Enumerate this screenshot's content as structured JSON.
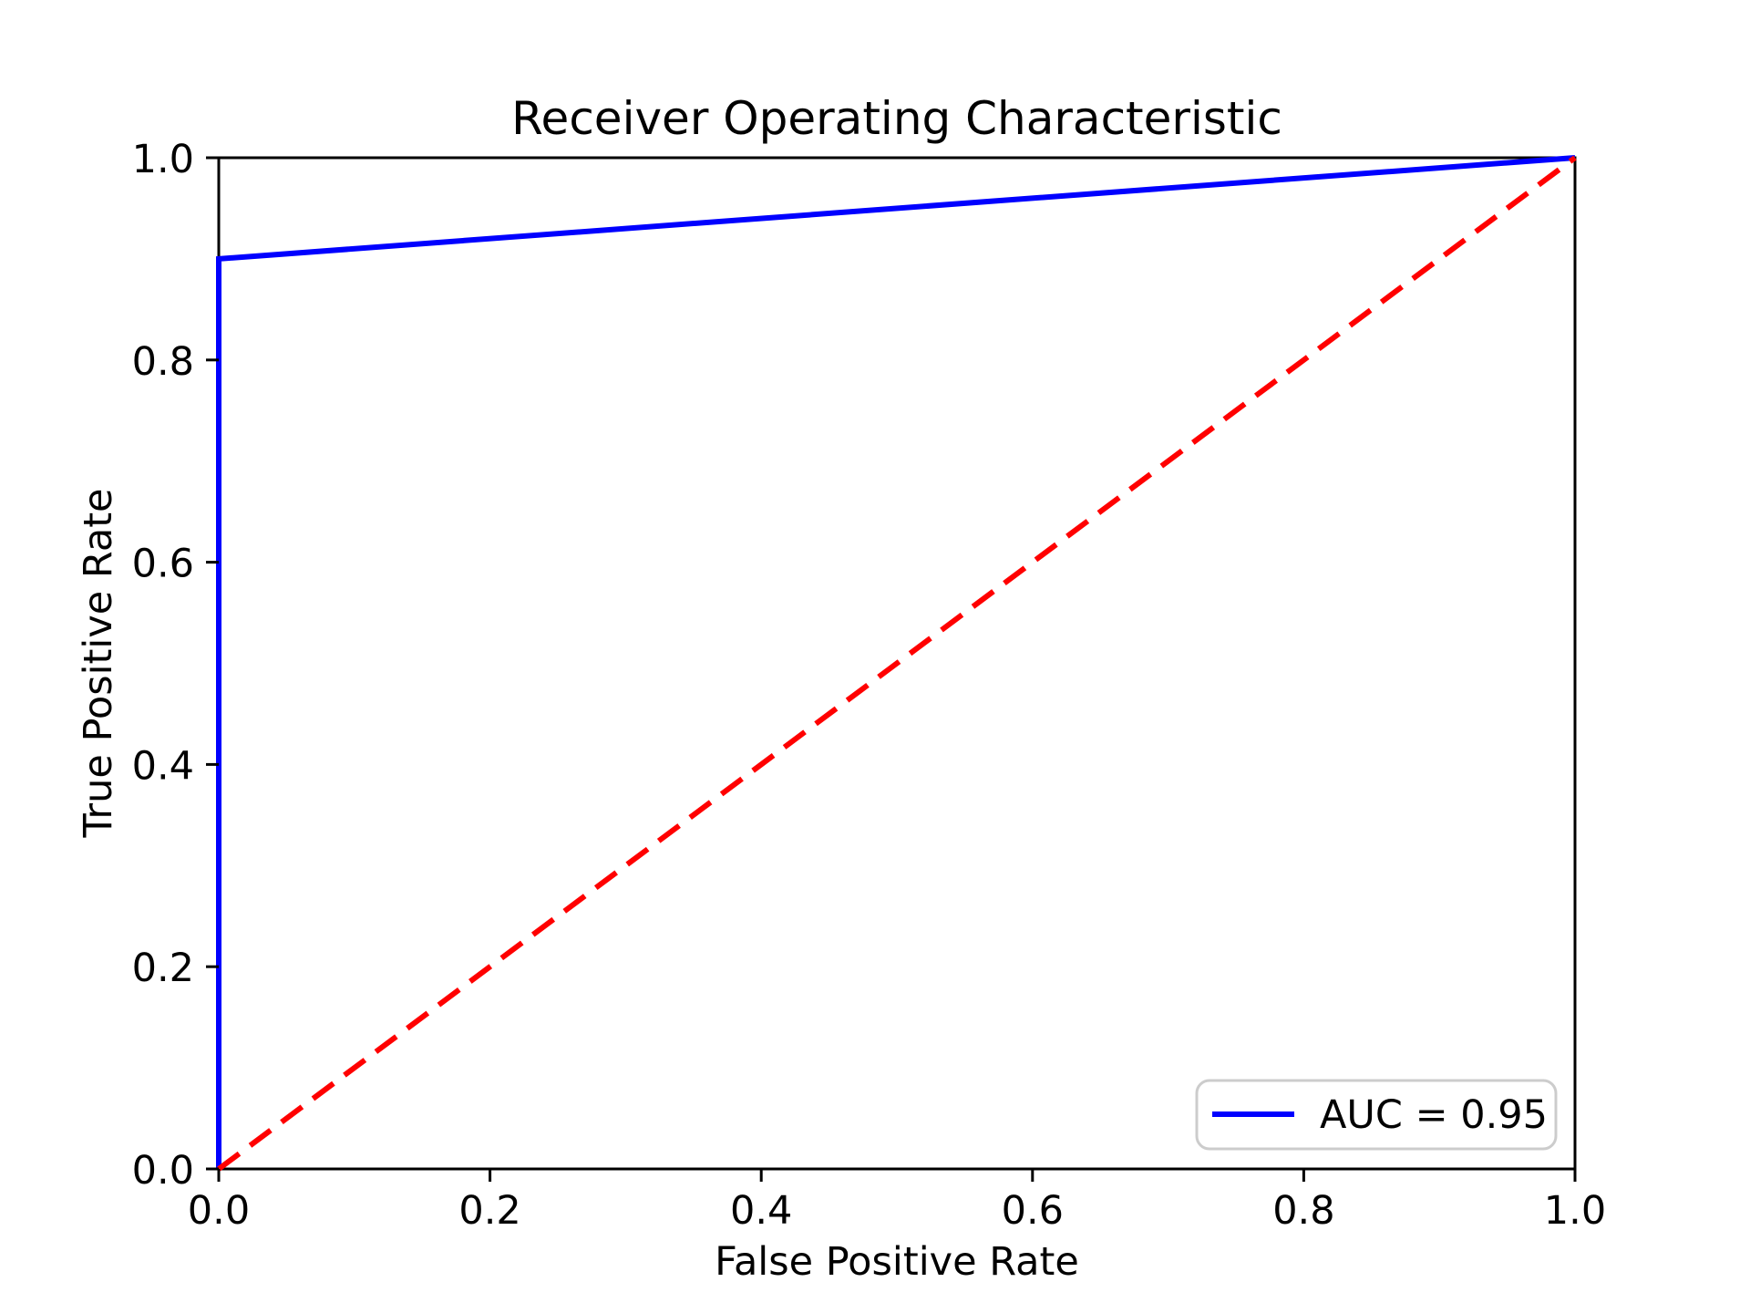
{
  "chart_data": {
    "type": "line",
    "title": "Receiver Operating Characteristic",
    "xlabel": "False Positive Rate",
    "ylabel": "True Positive Rate",
    "xlim": [
      0.0,
      1.0
    ],
    "ylim": [
      0.0,
      1.0
    ],
    "xticks": [
      "0.0",
      "0.2",
      "0.4",
      "0.6",
      "0.8",
      "1.0"
    ],
    "yticks": [
      "0.0",
      "0.2",
      "0.4",
      "0.6",
      "0.8",
      "1.0"
    ],
    "grid": false,
    "legend": {
      "position": "lower right",
      "entries": [
        {
          "label": "AUC = 0.95",
          "color": "#0000ff",
          "style": "solid"
        }
      ]
    },
    "series": [
      {
        "name": "roc-curve",
        "color": "#0000ff",
        "style": "solid",
        "linewidth": 6,
        "x": [
          0.0,
          0.0,
          1.0
        ],
        "y": [
          0.0,
          0.9,
          1.0
        ]
      },
      {
        "name": "chance-diagonal",
        "color": "#ff0000",
        "style": "dashed",
        "linewidth": 6,
        "x": [
          0.0,
          1.0
        ],
        "y": [
          0.0,
          1.0
        ]
      }
    ]
  },
  "colors": {
    "roc_line": "#0000ff",
    "diagonal_line": "#ff0000",
    "axis": "#000000",
    "background": "#ffffff",
    "legend_border": "#cccccc"
  }
}
